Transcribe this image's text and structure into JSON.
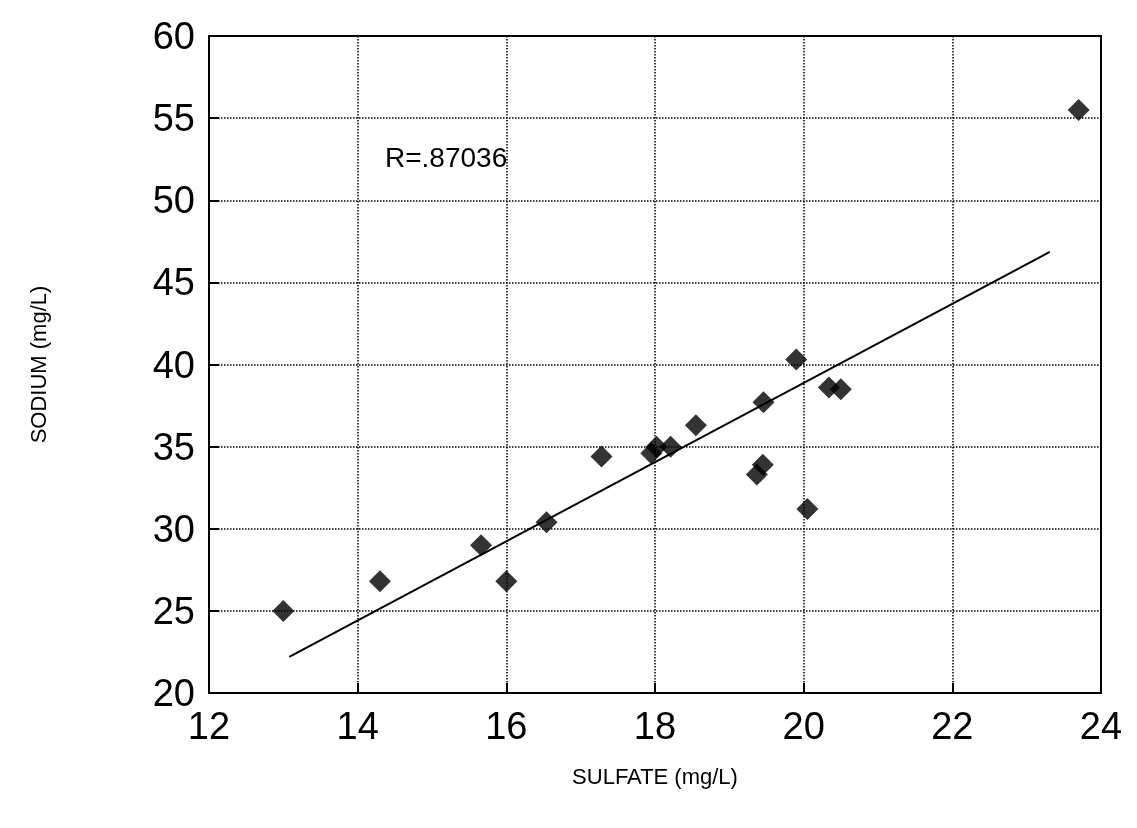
{
  "chart_data": {
    "type": "scatter",
    "xlabel": "SULFATE (mg/L)",
    "ylabel": "SODIUM (mg/L)",
    "annotations": [
      "R=.87036"
    ],
    "series": [
      {
        "color": "#000000",
        "marker": "diamond",
        "x": [
          13.0,
          14.3,
          15.66,
          16.0,
          16.54,
          17.28,
          17.95,
          18.02,
          18.21,
          18.55,
          19.37,
          19.45,
          19.46,
          19.9,
          20.05,
          20.34,
          20.5,
          23.7
        ],
        "values": [
          25.0,
          26.8,
          29.0,
          26.8,
          30.4,
          34.4,
          34.6,
          35.0,
          35.0,
          36.3,
          33.3,
          33.9,
          37.7,
          40.3,
          31.2,
          38.6,
          38.5,
          55.5
        ]
      },
      {
        "type": "line",
        "color": "#000000",
        "marker": "none",
        "x": [
          13.08,
          23.31
        ],
        "values": [
          22.2,
          46.85
        ]
      }
    ],
    "xlim": [
      12,
      24
    ],
    "xticks": [
      12,
      14,
      16,
      18,
      20,
      22,
      24
    ],
    "ylim": [
      20,
      60
    ],
    "yticks": [
      20,
      25,
      30,
      35,
      40,
      45,
      50,
      55,
      60
    ],
    "grid": true
  }
}
